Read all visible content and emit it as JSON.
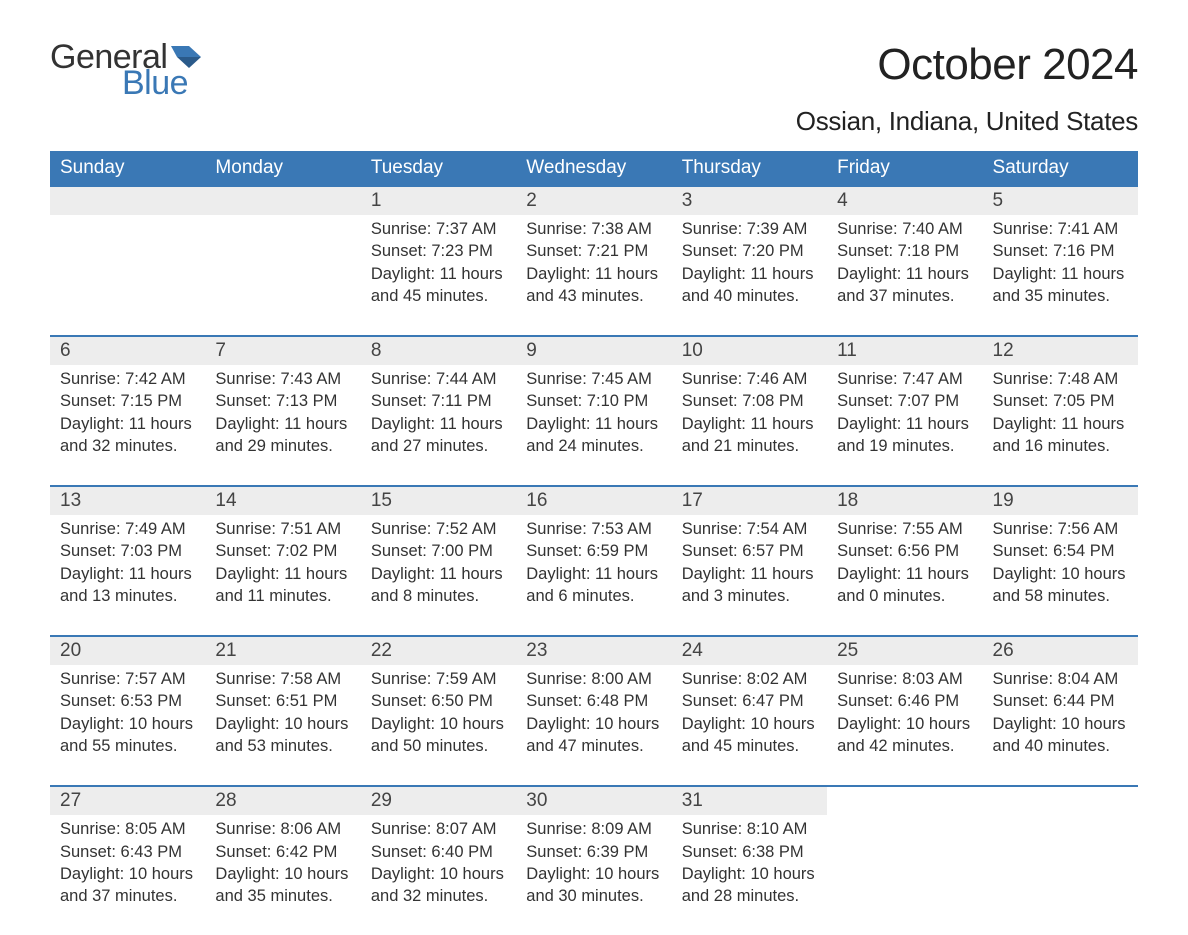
{
  "brand": {
    "word1": "General",
    "word2": "Blue",
    "flag_color": "#3a78b5",
    "word1_color": "#333333",
    "word2_color": "#3a78b5"
  },
  "title": "October 2024",
  "location": "Ossian, Indiana, United States",
  "colors": {
    "header_bg": "#3a78b5",
    "header_text": "#ffffff",
    "daynum_bg": "#ededed",
    "daynum_border": "#3a78b5",
    "body_text": "#333333",
    "background": "#ffffff"
  },
  "typography": {
    "title_fontsize": 44,
    "location_fontsize": 26,
    "dayheader_fontsize": 19,
    "daynum_fontsize": 19,
    "cell_fontsize": 16.5,
    "font_family": "Arial"
  },
  "day_headers": [
    "Sunday",
    "Monday",
    "Tuesday",
    "Wednesday",
    "Thursday",
    "Friday",
    "Saturday"
  ],
  "weeks": [
    [
      null,
      null,
      {
        "n": "1",
        "sunrise": "7:37 AM",
        "sunset": "7:23 PM",
        "d1": "Daylight: 11 hours",
        "d2": "and 45 minutes."
      },
      {
        "n": "2",
        "sunrise": "7:38 AM",
        "sunset": "7:21 PM",
        "d1": "Daylight: 11 hours",
        "d2": "and 43 minutes."
      },
      {
        "n": "3",
        "sunrise": "7:39 AM",
        "sunset": "7:20 PM",
        "d1": "Daylight: 11 hours",
        "d2": "and 40 minutes."
      },
      {
        "n": "4",
        "sunrise": "7:40 AM",
        "sunset": "7:18 PM",
        "d1": "Daylight: 11 hours",
        "d2": "and 37 minutes."
      },
      {
        "n": "5",
        "sunrise": "7:41 AM",
        "sunset": "7:16 PM",
        "d1": "Daylight: 11 hours",
        "d2": "and 35 minutes."
      }
    ],
    [
      {
        "n": "6",
        "sunrise": "7:42 AM",
        "sunset": "7:15 PM",
        "d1": "Daylight: 11 hours",
        "d2": "and 32 minutes."
      },
      {
        "n": "7",
        "sunrise": "7:43 AM",
        "sunset": "7:13 PM",
        "d1": "Daylight: 11 hours",
        "d2": "and 29 minutes."
      },
      {
        "n": "8",
        "sunrise": "7:44 AM",
        "sunset": "7:11 PM",
        "d1": "Daylight: 11 hours",
        "d2": "and 27 minutes."
      },
      {
        "n": "9",
        "sunrise": "7:45 AM",
        "sunset": "7:10 PM",
        "d1": "Daylight: 11 hours",
        "d2": "and 24 minutes."
      },
      {
        "n": "10",
        "sunrise": "7:46 AM",
        "sunset": "7:08 PM",
        "d1": "Daylight: 11 hours",
        "d2": "and 21 minutes."
      },
      {
        "n": "11",
        "sunrise": "7:47 AM",
        "sunset": "7:07 PM",
        "d1": "Daylight: 11 hours",
        "d2": "and 19 minutes."
      },
      {
        "n": "12",
        "sunrise": "7:48 AM",
        "sunset": "7:05 PM",
        "d1": "Daylight: 11 hours",
        "d2": "and 16 minutes."
      }
    ],
    [
      {
        "n": "13",
        "sunrise": "7:49 AM",
        "sunset": "7:03 PM",
        "d1": "Daylight: 11 hours",
        "d2": "and 13 minutes."
      },
      {
        "n": "14",
        "sunrise": "7:51 AM",
        "sunset": "7:02 PM",
        "d1": "Daylight: 11 hours",
        "d2": "and 11 minutes."
      },
      {
        "n": "15",
        "sunrise": "7:52 AM",
        "sunset": "7:00 PM",
        "d1": "Daylight: 11 hours",
        "d2": "and 8 minutes."
      },
      {
        "n": "16",
        "sunrise": "7:53 AM",
        "sunset": "6:59 PM",
        "d1": "Daylight: 11 hours",
        "d2": "and 6 minutes."
      },
      {
        "n": "17",
        "sunrise": "7:54 AM",
        "sunset": "6:57 PM",
        "d1": "Daylight: 11 hours",
        "d2": "and 3 minutes."
      },
      {
        "n": "18",
        "sunrise": "7:55 AM",
        "sunset": "6:56 PM",
        "d1": "Daylight: 11 hours",
        "d2": "and 0 minutes."
      },
      {
        "n": "19",
        "sunrise": "7:56 AM",
        "sunset": "6:54 PM",
        "d1": "Daylight: 10 hours",
        "d2": "and 58 minutes."
      }
    ],
    [
      {
        "n": "20",
        "sunrise": "7:57 AM",
        "sunset": "6:53 PM",
        "d1": "Daylight: 10 hours",
        "d2": "and 55 minutes."
      },
      {
        "n": "21",
        "sunrise": "7:58 AM",
        "sunset": "6:51 PM",
        "d1": "Daylight: 10 hours",
        "d2": "and 53 minutes."
      },
      {
        "n": "22",
        "sunrise": "7:59 AM",
        "sunset": "6:50 PM",
        "d1": "Daylight: 10 hours",
        "d2": "and 50 minutes."
      },
      {
        "n": "23",
        "sunrise": "8:00 AM",
        "sunset": "6:48 PM",
        "d1": "Daylight: 10 hours",
        "d2": "and 47 minutes."
      },
      {
        "n": "24",
        "sunrise": "8:02 AM",
        "sunset": "6:47 PM",
        "d1": "Daylight: 10 hours",
        "d2": "and 45 minutes."
      },
      {
        "n": "25",
        "sunrise": "8:03 AM",
        "sunset": "6:46 PM",
        "d1": "Daylight: 10 hours",
        "d2": "and 42 minutes."
      },
      {
        "n": "26",
        "sunrise": "8:04 AM",
        "sunset": "6:44 PM",
        "d1": "Daylight: 10 hours",
        "d2": "and 40 minutes."
      }
    ],
    [
      {
        "n": "27",
        "sunrise": "8:05 AM",
        "sunset": "6:43 PM",
        "d1": "Daylight: 10 hours",
        "d2": "and 37 minutes."
      },
      {
        "n": "28",
        "sunrise": "8:06 AM",
        "sunset": "6:42 PM",
        "d1": "Daylight: 10 hours",
        "d2": "and 35 minutes."
      },
      {
        "n": "29",
        "sunrise": "8:07 AM",
        "sunset": "6:40 PM",
        "d1": "Daylight: 10 hours",
        "d2": "and 32 minutes."
      },
      {
        "n": "30",
        "sunrise": "8:09 AM",
        "sunset": "6:39 PM",
        "d1": "Daylight: 10 hours",
        "d2": "and 30 minutes."
      },
      {
        "n": "31",
        "sunrise": "8:10 AM",
        "sunset": "6:38 PM",
        "d1": "Daylight: 10 hours",
        "d2": "and 28 minutes."
      },
      null,
      null
    ]
  ],
  "labels": {
    "sunrise_prefix": "Sunrise: ",
    "sunset_prefix": "Sunset: "
  }
}
